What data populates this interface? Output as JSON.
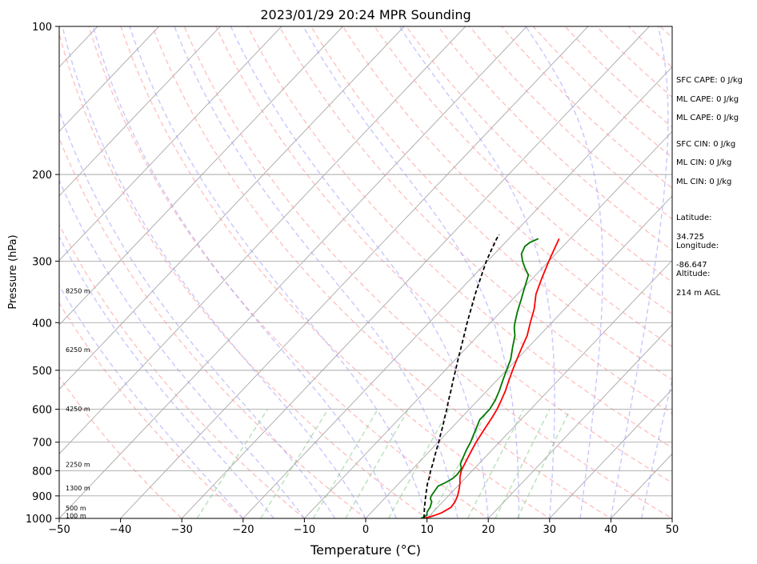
{
  "chart_data": {
    "type": "line",
    "title": "2023/01/29 20:24 MPR Sounding",
    "xlabel": "Temperature (°C)",
    "ylabel": "Pressure (hPa)",
    "xlim": [
      -50,
      50
    ],
    "ylim": [
      1000,
      100
    ],
    "y_scale": "log",
    "x_ticks": [
      -50,
      -40,
      -30,
      -20,
      -10,
      0,
      10,
      20,
      30,
      40,
      50
    ],
    "x_tick_labels": [
      "−50",
      "−40",
      "−30",
      "−20",
      "−10",
      "0",
      "10",
      "20",
      "30",
      "40",
      "50"
    ],
    "y_ticks": [
      100,
      200,
      300,
      400,
      500,
      600,
      700,
      800,
      900,
      1000
    ],
    "y_tick_labels": [
      "100",
      "200",
      "300",
      "400",
      "500",
      "600",
      "700",
      "800",
      "900",
      "1000"
    ],
    "grid": true,
    "background_lines": {
      "isotherms_color": "#a8a8a8",
      "dry_adiabats_color": "#ff9999",
      "moist_adiabats_color": "#9999ff",
      "mixing_ratio_color": "#88cc88"
    },
    "height_labels": [
      {
        "text": "100 m",
        "p": 988
      },
      {
        "text": "500 m",
        "p": 955
      },
      {
        "text": "1300 m",
        "p": 869
      },
      {
        "text": "2250 m",
        "p": 778
      },
      {
        "text": "4250 m",
        "p": 600
      },
      {
        "text": "6250 m",
        "p": 455
      },
      {
        "text": "8250 m",
        "p": 345
      }
    ],
    "series": [
      {
        "color": "#ff0000",
        "points": [
          [
            1000,
            9.5
          ],
          [
            990,
            10.5
          ],
          [
            975,
            11.5
          ],
          [
            950,
            12.2
          ],
          [
            925,
            12.0
          ],
          [
            900,
            11.5
          ],
          [
            875,
            10.8
          ],
          [
            850,
            10.0
          ],
          [
            825,
            9.0
          ],
          [
            800,
            8.2
          ],
          [
            775,
            7.7
          ],
          [
            750,
            7.2
          ],
          [
            725,
            6.7
          ],
          [
            700,
            6.2
          ],
          [
            675,
            5.8
          ],
          [
            650,
            5.4
          ],
          [
            625,
            5.0
          ],
          [
            600,
            4.5
          ],
          [
            575,
            3.8
          ],
          [
            550,
            3.0
          ],
          [
            525,
            2.0
          ],
          [
            500,
            1.0
          ],
          [
            475,
            0.0
          ],
          [
            450,
            -1.0
          ],
          [
            425,
            -2.0
          ],
          [
            400,
            -3.5
          ],
          [
            375,
            -5.0
          ],
          [
            350,
            -7.0
          ],
          [
            325,
            -8.5
          ],
          [
            300,
            -10.0
          ],
          [
            280,
            -11.2
          ],
          [
            270,
            -11.8
          ]
        ]
      },
      {
        "color": "#007700",
        "points": [
          [
            1000,
            9.0
          ],
          [
            985,
            9.5
          ],
          [
            970,
            9.0
          ],
          [
            950,
            8.8
          ],
          [
            925,
            8.2
          ],
          [
            912,
            7.5
          ],
          [
            900,
            7.2
          ],
          [
            880,
            7.0
          ],
          [
            860,
            6.8
          ],
          [
            845,
            7.5
          ],
          [
            830,
            8.0
          ],
          [
            815,
            8.1
          ],
          [
            800,
            8.0
          ],
          [
            790,
            7.8
          ],
          [
            775,
            7.0
          ],
          [
            750,
            6.4
          ],
          [
            725,
            5.8
          ],
          [
            700,
            5.3
          ],
          [
            675,
            4.6
          ],
          [
            650,
            3.9
          ],
          [
            630,
            3.3
          ],
          [
            615,
            3.3
          ],
          [
            600,
            3.3
          ],
          [
            575,
            2.8
          ],
          [
            550,
            2.0
          ],
          [
            525,
            1.0
          ],
          [
            500,
            0.0
          ],
          [
            475,
            -1.0
          ],
          [
            450,
            -2.5
          ],
          [
            425,
            -4.0
          ],
          [
            410,
            -5.3
          ],
          [
            400,
            -6.0
          ],
          [
            380,
            -7.3
          ],
          [
            360,
            -8.5
          ],
          [
            345,
            -9.5
          ],
          [
            330,
            -10.5
          ],
          [
            320,
            -11.2
          ],
          [
            310,
            -12.8
          ],
          [
            300,
            -14.3
          ],
          [
            290,
            -15.6
          ],
          [
            280,
            -16.2
          ],
          [
            275,
            -16.0
          ],
          [
            270,
            -15.2
          ]
        ]
      },
      {
        "color": "#000000",
        "dashed": true,
        "points": [
          [
            1000,
            9.5
          ],
          [
            975,
            8.7
          ],
          [
            950,
            7.9
          ],
          [
            925,
            7.1
          ],
          [
            900,
            6.3
          ],
          [
            875,
            5.5
          ],
          [
            850,
            4.7
          ],
          [
            825,
            4.0
          ],
          [
            800,
            3.2
          ],
          [
            775,
            2.5
          ],
          [
            750,
            1.7
          ],
          [
            725,
            0.9
          ],
          [
            700,
            0.1
          ],
          [
            675,
            -0.8
          ],
          [
            650,
            -1.7
          ],
          [
            625,
            -2.7
          ],
          [
            600,
            -3.7
          ],
          [
            575,
            -4.8
          ],
          [
            550,
            -5.9
          ],
          [
            525,
            -7.1
          ],
          [
            500,
            -8.3
          ],
          [
            475,
            -9.6
          ],
          [
            450,
            -10.9
          ],
          [
            425,
            -12.3
          ],
          [
            400,
            -13.8
          ],
          [
            375,
            -15.3
          ],
          [
            350,
            -16.9
          ],
          [
            325,
            -18.5
          ],
          [
            300,
            -20.2
          ],
          [
            285,
            -21.1
          ],
          [
            270,
            -22.0
          ],
          [
            265,
            -22.2
          ]
        ]
      }
    ]
  },
  "stats": [
    {
      "text": "SFC CAPE: 0 J/kg"
    },
    {
      "text": "ML CAPE: 0 J/kg"
    },
    {
      "text": "ML CAPE: 0 J/kg"
    },
    {
      "text": "SFC CIN: 0 J/kg"
    },
    {
      "text": "ML CIN: 0 J/kg"
    },
    {
      "text": "ML CIN: 0 J/kg"
    }
  ],
  "location": {
    "latitude_label": "Latitude:",
    "latitude_value": "34.725",
    "longitude_label": "Longitude:",
    "longitude_value": "-86.647",
    "altitude_label": "Altitude:",
    "altitude_value": "214 m AGL"
  }
}
